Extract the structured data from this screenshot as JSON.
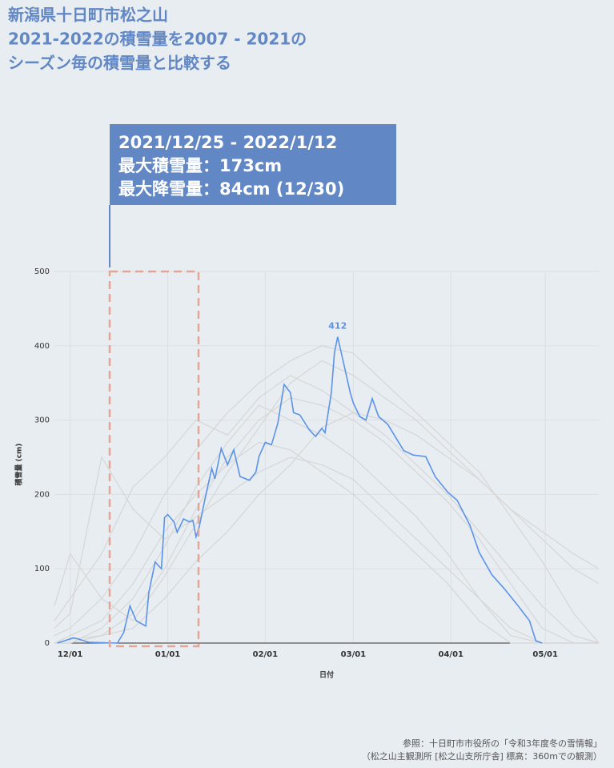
{
  "chart_data": {
    "type": "line",
    "title": [
      "新潟県十日町市松之山",
      "2021-2022の積雪量を2007 - 2021の",
      "シーズン毎の積雪量と比較する"
    ],
    "annotation": [
      "2021/12/25 - 2022/1/12",
      "最大積雪量：173cm",
      "最大降雪量：84cm (12/30)"
    ],
    "y_label": "積雪量 (cm)",
    "x_label": "日付",
    "source": [
      "参照：十日町市市役所の「令和3年度冬の雪情報」",
      "（松之山主観測所 [松之山支所庁舎] 標高：360mでの観測）"
    ],
    "xlim": [
      -5,
      168
    ],
    "ylim": [
      0,
      500
    ],
    "xticks": [
      {
        "value": 0,
        "label": "12/01"
      },
      {
        "value": 31,
        "label": "01/01"
      },
      {
        "value": 62,
        "label": "02/01"
      },
      {
        "value": 90,
        "label": "03/01"
      },
      {
        "value": 121,
        "label": "04/01"
      },
      {
        "value": 151,
        "label": "05/01"
      }
    ],
    "yticks": [
      0,
      100,
      200,
      300,
      400,
      500
    ],
    "grid": true,
    "series": [
      {
        "color": "#d6d6d6",
        "x": [
          -5,
          0,
          10,
          20,
          30,
          40,
          50,
          60,
          70,
          80,
          90,
          100,
          110,
          120,
          130,
          140,
          150,
          160,
          168
        ],
        "values": [
          10,
          20,
          60,
          120,
          200,
          260,
          310,
          350,
          380,
          400,
          390,
          350,
          310,
          270,
          230,
          170,
          110,
          40,
          0
        ]
      },
      {
        "color": "#d6d6d6",
        "x": [
          -5,
          0,
          10,
          20,
          30,
          40,
          50,
          60,
          70,
          80,
          90,
          100,
          110,
          120,
          130,
          140,
          150,
          160,
          168
        ],
        "values": [
          0,
          0,
          10,
          40,
          100,
          180,
          250,
          300,
          330,
          320,
          300,
          270,
          230,
          190,
          140,
          80,
          20,
          0,
          0
        ]
      },
      {
        "color": "#d6d6d6",
        "x": [
          -5,
          0,
          10,
          20,
          30,
          40,
          50,
          60,
          70,
          80,
          90,
          100,
          110,
          120,
          130,
          140,
          150,
          160,
          168
        ],
        "values": [
          30,
          60,
          120,
          210,
          250,
          300,
          280,
          330,
          360,
          340,
          310,
          280,
          240,
          200,
          150,
          100,
          50,
          10,
          0
        ]
      },
      {
        "color": "#d6d6d6",
        "x": [
          -5,
          0,
          10,
          20,
          30,
          40,
          50,
          60,
          70,
          80,
          90,
          100,
          110,
          120,
          130,
          140,
          150,
          160,
          168
        ],
        "values": [
          0,
          10,
          30,
          80,
          150,
          200,
          240,
          270,
          260,
          230,
          200,
          160,
          120,
          80,
          30,
          0,
          0,
          0,
          0
        ]
      },
      {
        "color": "#d6d6d6",
        "x": [
          -5,
          0,
          10,
          20,
          30,
          40,
          50,
          60,
          70,
          80,
          90,
          100,
          110,
          120,
          130,
          140,
          150,
          160,
          168
        ],
        "values": [
          50,
          120,
          60,
          30,
          90,
          160,
          230,
          290,
          350,
          380,
          360,
          330,
          300,
          260,
          220,
          180,
          140,
          100,
          80
        ]
      },
      {
        "color": "#d6d6d6",
        "x": [
          -5,
          0,
          10,
          20,
          30,
          40,
          50,
          60,
          70,
          80,
          90,
          100,
          110,
          120,
          130,
          140,
          150,
          160,
          168
        ],
        "values": [
          0,
          0,
          20,
          60,
          130,
          210,
          270,
          320,
          300,
          280,
          250,
          210,
          170,
          120,
          60,
          10,
          0,
          0,
          0
        ]
      },
      {
        "color": "#d6d6d6",
        "x": [
          -5,
          0,
          10,
          20,
          30,
          40,
          50,
          60,
          70,
          80,
          90,
          100,
          110,
          120,
          130,
          140,
          150,
          160,
          168
        ],
        "values": [
          20,
          40,
          250,
          180,
          140,
          170,
          200,
          230,
          250,
          240,
          220,
          180,
          140,
          100,
          60,
          20,
          0,
          0,
          0
        ]
      },
      {
        "color": "#d6d6d6",
        "x": [
          -5,
          0,
          10,
          20,
          30,
          40,
          50,
          60,
          70,
          80,
          90,
          100,
          110,
          120,
          130,
          140,
          150,
          160,
          168
        ],
        "values": [
          0,
          5,
          10,
          20,
          60,
          110,
          150,
          200,
          240,
          290,
          310,
          300,
          280,
          250,
          220,
          180,
          150,
          120,
          100
        ]
      },
      {
        "color": "#5b93e8",
        "x": [
          -4,
          1,
          3,
          6,
          15,
          17,
          19,
          21,
          24,
          25,
          27,
          29,
          30,
          31,
          33,
          34,
          36,
          38,
          39,
          40,
          41,
          43,
          45,
          46,
          48,
          50,
          52,
          54,
          57,
          59,
          60,
          62,
          64,
          66,
          68,
          70,
          71,
          73,
          76,
          78,
          80,
          81,
          83,
          84,
          85,
          87,
          89,
          90,
          92,
          94,
          96,
          98,
          101,
          104,
          106,
          109,
          113,
          116,
          120,
          123,
          127,
          130,
          134,
          138,
          142,
          146,
          148,
          150
        ],
        "values": [
          0,
          7,
          5,
          1,
          0,
          14,
          50,
          30,
          23,
          68,
          109,
          100,
          169,
          173,
          163,
          149,
          167,
          163,
          165,
          143,
          156,
          197,
          235,
          221,
          262,
          240,
          260,
          224,
          219,
          230,
          251,
          270,
          267,
          296,
          348,
          337,
          310,
          307,
          287,
          278,
          289,
          283,
          337,
          391,
          412,
          375,
          337,
          323,
          305,
          300,
          329,
          305,
          294,
          273,
          259,
          253,
          251,
          224,
          203,
          192,
          159,
          122,
          92,
          73,
          52,
          30,
          3,
          0
        ]
      }
    ]
  }
}
